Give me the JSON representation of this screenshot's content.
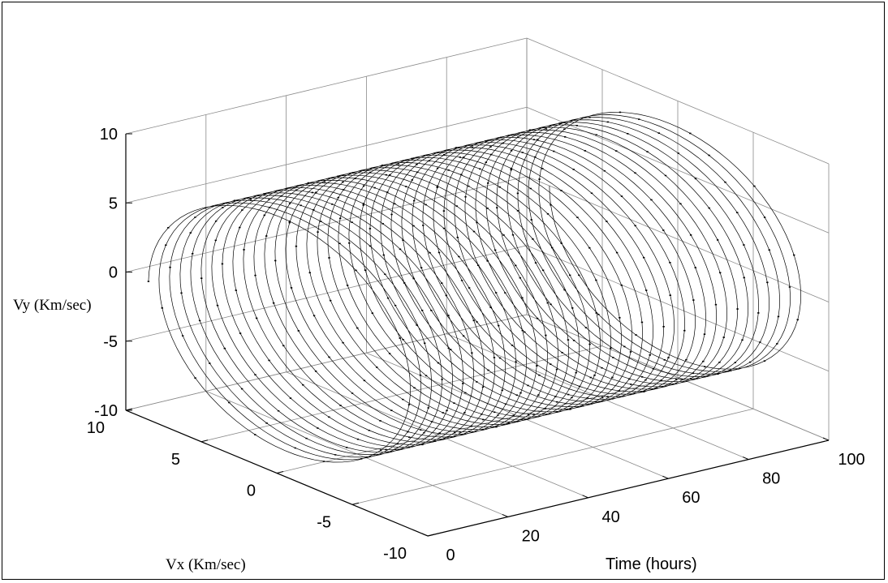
{
  "chart_data": {
    "type": "line3d",
    "title": "",
    "xlabel": "Time (hours)",
    "ylabel": "Vx (Km/sec)",
    "zlabel": "Vy (Km/sec)",
    "xlim": [
      0,
      100
    ],
    "ylim": [
      -10,
      10
    ],
    "zlim": [
      -10,
      10
    ],
    "xticks": [
      "0",
      "20",
      "40",
      "60",
      "80",
      "100"
    ],
    "yticks": [
      "-10",
      "-5",
      "0",
      "5",
      "10"
    ],
    "zticks": [
      "-10",
      "-5",
      "0",
      "5",
      "10"
    ],
    "grid": true,
    "series": [
      {
        "description_values": {
          "amplitude_vx": 8.5,
          "amplitude_vy": 8.5,
          "orbits": 38,
          "t_start": 0,
          "t_end": 100
        },
        "color": "#000000",
        "marker": "."
      }
    ]
  }
}
